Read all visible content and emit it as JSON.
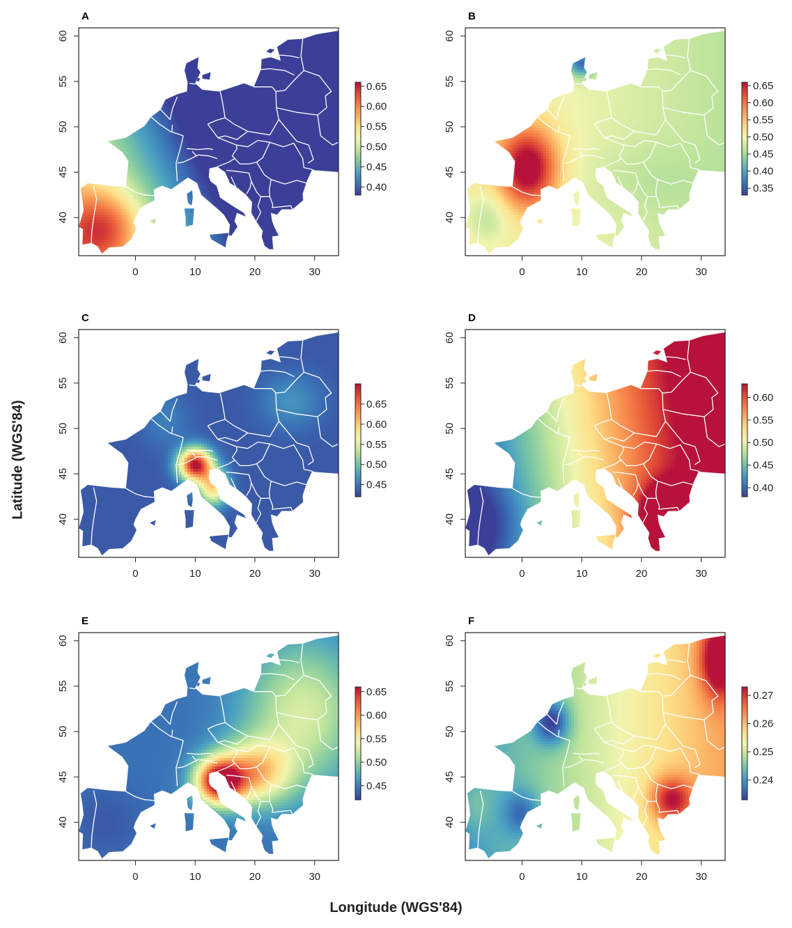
{
  "figure": {
    "x_axis_title": "Longitude (WGS'84)",
    "y_axis_title": "Latitude (WGS'84)"
  },
  "map_extent": {
    "lon": [
      -9.5,
      34
    ],
    "lat": [
      35.8,
      60.9
    ]
  },
  "chart_data": [
    {
      "type": "heatmap",
      "panel": "A",
      "x_ticks": [
        0,
        10,
        20,
        30
      ],
      "y_ticks": [
        40,
        45,
        50,
        55,
        60
      ],
      "colorbar": {
        "ticks": [
          "0.40",
          "0.45",
          "0.50",
          "0.55",
          "0.60",
          "0.65"
        ],
        "range": [
          0.38,
          0.66
        ]
      },
      "colormap": "Spectral (blue = low, red = high)",
      "pattern": "High in Iberia (~0.65), decreasing north-east to ~0.40 in the Balkans and eastern Europe"
    },
    {
      "type": "heatmap",
      "panel": "B",
      "x_ticks": [
        0,
        10,
        20,
        30
      ],
      "y_ticks": [
        40,
        45,
        50,
        55,
        60
      ],
      "colorbar": {
        "ticks": [
          "0.35",
          "0.40",
          "0.45",
          "0.50",
          "0.55",
          "0.60",
          "0.65"
        ],
        "range": [
          0.33,
          0.66
        ]
      },
      "colormap": "Spectral (blue = low, red = high)",
      "pattern": "Peak (~0.65) in south-western France, moderate (~0.5) in central Europe, low (~0.35) in Denmark"
    },
    {
      "type": "heatmap",
      "panel": "C",
      "x_ticks": [
        0,
        10,
        20,
        30
      ],
      "y_ticks": [
        40,
        45,
        50,
        55,
        60
      ],
      "colorbar": {
        "ticks": [
          "0.45",
          "0.50",
          "0.55",
          "0.60",
          "0.65"
        ],
        "range": [
          0.42,
          0.7
        ]
      },
      "colormap": "Spectral (blue = low, red = high)",
      "pattern": "Hotspot (~0.68) in northern Italy and the Adriatic coast, low (~0.43) elsewhere"
    },
    {
      "type": "heatmap",
      "panel": "D",
      "x_ticks": [
        0,
        10,
        20,
        30
      ],
      "y_ticks": [
        40,
        45,
        50,
        55,
        60
      ],
      "colorbar": {
        "ticks": [
          "0.40",
          "0.45",
          "0.50",
          "0.55",
          "0.60"
        ],
        "range": [
          0.38,
          0.63
        ]
      },
      "colormap": "Spectral (blue = low, red = high)",
      "pattern": "Low (~0.40) in Iberia and France, rising south-east to ~0.62 in Greece"
    },
    {
      "type": "heatmap",
      "panel": "E",
      "x_ticks": [
        0,
        10,
        20,
        30
      ],
      "y_ticks": [
        40,
        45,
        50,
        55,
        60
      ],
      "colorbar": {
        "ticks": [
          "0.45",
          "0.50",
          "0.55",
          "0.60",
          "0.65"
        ],
        "range": [
          0.42,
          0.66
        ]
      },
      "colormap": "Spectral (blue = low, red = high)",
      "pattern": "Peak (~0.65) in the Adriatic and Croatia, low (~0.43) in Iberia and Germany"
    },
    {
      "type": "heatmap",
      "panel": "F",
      "x_ticks": [
        0,
        10,
        20,
        30
      ],
      "y_ticks": [
        40,
        45,
        50,
        55,
        60
      ],
      "colorbar": {
        "ticks": [
          "0.24",
          "0.25",
          "0.26",
          "0.27"
        ],
        "range": [
          0.233,
          0.273
        ]
      },
      "colormap": "Spectral (blue = low, red = high)",
      "pattern": "Low (~0.235) in the Low Countries and western Europe, high (~0.27) in the Baltic region and Bulgaria/Greece"
    }
  ]
}
